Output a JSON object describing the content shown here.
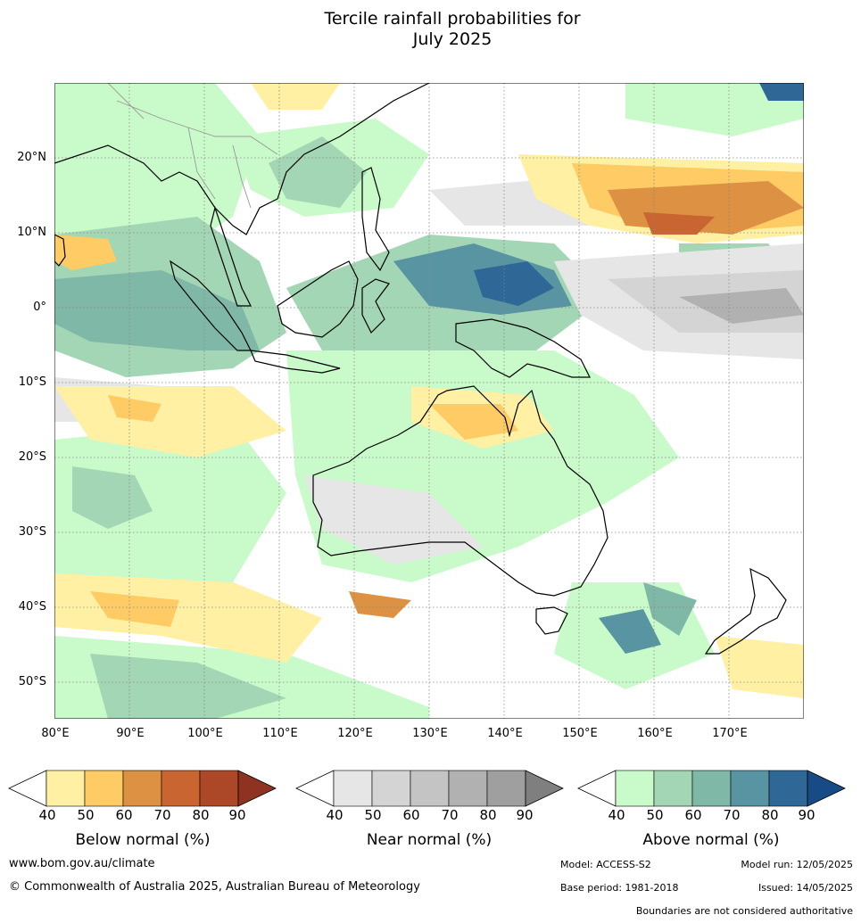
{
  "title_line1": "Tercile rainfall probabilities for",
  "title_line2": "July 2025",
  "lat_labels": [
    "20°N",
    "10°N",
    "0°",
    "10°S",
    "20°S",
    "30°S",
    "40°S",
    "50°S"
  ],
  "lon_labels": [
    "80°E",
    "90°E",
    "100°E",
    "110°E",
    "120°E",
    "130°E",
    "140°E",
    "150°E",
    "160°E",
    "170°E"
  ],
  "legend": {
    "below": {
      "title": "Below normal (%)",
      "ticks": [
        "40",
        "50",
        "60",
        "70",
        "80",
        "90"
      ],
      "colors": [
        "#ffffff",
        "#fff0a3",
        "#fecb64",
        "#dd9143",
        "#c86530",
        "#ac4828",
        "#8e3322"
      ]
    },
    "near": {
      "title": "Near normal (%)",
      "ticks": [
        "40",
        "50",
        "60",
        "70",
        "80",
        "90"
      ],
      "colors": [
        "#ffffff",
        "#e6e6e6",
        "#d4d4d4",
        "#c4c4c4",
        "#b1b1b1",
        "#9f9f9f",
        "#7f7f7f"
      ]
    },
    "above": {
      "title": "Above normal (%)",
      "ticks": [
        "40",
        "50",
        "60",
        "70",
        "80",
        "90"
      ],
      "colors": [
        "#ffffff",
        "#c9fac9",
        "#a3d6b4",
        "#80b8a8",
        "#5894a2",
        "#2f6796",
        "#174b85"
      ]
    }
  },
  "footer": {
    "website": "www.bom.gov.au/climate",
    "copyright": "© Commonwealth of Australia 2025, Australian Bureau of Meteorology",
    "model": "Model: ACCESS-S2",
    "model_run": "Model run: 12/05/2025",
    "base_period": "Base period: 1981-2018",
    "issued": "Issued: 14/05/2025",
    "disclaimer": "Boundaries are not considered authoritative"
  }
}
